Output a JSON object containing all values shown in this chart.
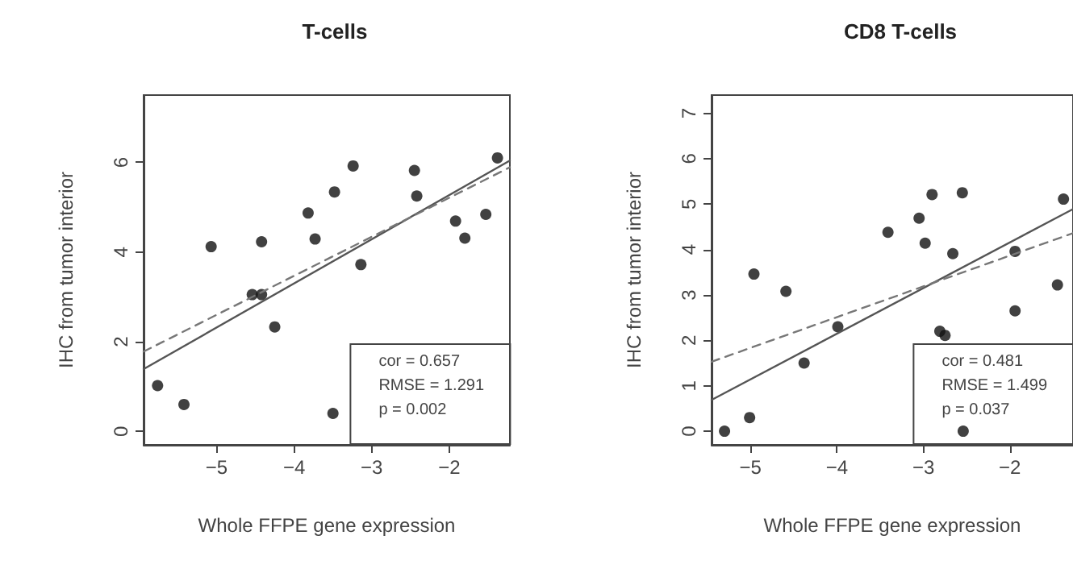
{
  "chart_data": [
    {
      "type": "scatter",
      "title": "T-cells",
      "xlabel": "Whole FFPE gene expression",
      "ylabel": "IHC from tumor interior",
      "xlim": [
        -5.94,
        -1.22
      ],
      "ylim": [
        -0.3,
        7.5
      ],
      "xticks": [
        -5,
        -4,
        -3,
        -2
      ],
      "yticks": [
        0,
        2,
        4,
        6
      ],
      "grid": false,
      "annotations": [
        "cor = 0.657",
        "RMSE = 1.291",
        "p = 0.002"
      ],
      "series": [
        {
          "marker": "circle",
          "color": "#111111",
          "x": [
            -5.76,
            -5.42,
            -5.07,
            -4.54,
            -4.42,
            -4.42,
            -4.25,
            -3.82,
            -3.73,
            -3.48,
            -3.5,
            -3.24,
            -3.14,
            -2.45,
            -2.42,
            -1.92,
            -1.8,
            -1.53,
            -1.38
          ],
          "values": [
            1.02,
            0.6,
            4.12,
            3.05,
            3.05,
            4.23,
            2.33,
            4.87,
            4.29,
            5.34,
            0.4,
            5.92,
            3.72,
            5.82,
            5.25,
            4.69,
            4.31,
            4.84,
            6.1
          ]
        },
        {
          "type": "line",
          "marker": "none",
          "color": "#555555",
          "line_style": "solid",
          "x": [
            -5.94,
            -1.22
          ],
          "values": [
            1.39,
            6.04
          ]
        },
        {
          "type": "line",
          "marker": "none",
          "color": "#777777",
          "line_style": "dashed",
          "x": [
            -5.94,
            -1.22
          ],
          "values": [
            1.78,
            5.89
          ]
        }
      ]
    },
    {
      "type": "scatter",
      "title": "CD8 T-cells",
      "xlabel": "Whole FFPE gene expression",
      "ylabel": "IHC from tumor interior",
      "xlim": [
        -5.45,
        -1.27
      ],
      "ylim": [
        -0.3,
        7.4
      ],
      "xticks": [
        -5,
        -4,
        -3,
        -2
      ],
      "yticks": [
        0,
        1,
        2,
        3,
        4,
        5,
        6,
        7
      ],
      "grid": false,
      "annotations": [
        "cor = 0.481",
        "RMSE = 1.499",
        "p = 0.037"
      ],
      "series": [
        {
          "marker": "circle",
          "color": "#111111",
          "x": [
            -5.3,
            -5.01,
            -4.96,
            -4.59,
            -4.38,
            -3.99,
            -3.41,
            -3.05,
            -2.98,
            -2.9,
            -2.81,
            -2.75,
            -2.66,
            -2.55,
            -2.54,
            -1.94,
            -1.94,
            -1.45,
            -1.38
          ],
          "values": [
            0,
            0.3,
            3.46,
            3.08,
            1.5,
            2.3,
            4.38,
            4.69,
            4.14,
            5.21,
            2.2,
            2.11,
            3.91,
            5.25,
            0,
            3.96,
            2.65,
            3.22,
            5.11
          ]
        },
        {
          "type": "line",
          "marker": "none",
          "color": "#555555",
          "line_style": "solid",
          "x": [
            -5.45,
            -1.27
          ],
          "values": [
            0.69,
            4.89
          ]
        },
        {
          "type": "line",
          "marker": "none",
          "color": "#777777",
          "line_style": "dashed",
          "x": [
            -5.45,
            -1.27
          ],
          "values": [
            1.53,
            4.36
          ]
        }
      ]
    }
  ]
}
